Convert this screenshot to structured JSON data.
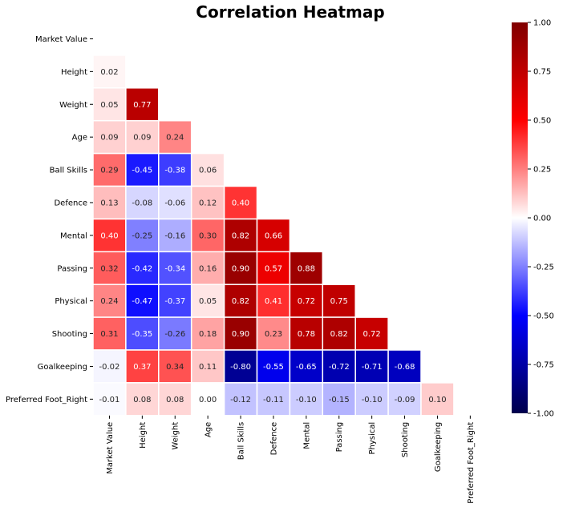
{
  "chart_data": {
    "type": "heatmap",
    "title": "Correlation Heatmap",
    "variables": [
      "Market Value",
      "Height",
      "Weight",
      "Age",
      "Ball Skills",
      "Defence",
      "Mental",
      "Passing",
      "Physical",
      "Shooting",
      "Goalkeeping",
      "Preferred Foot_Right"
    ],
    "mask": "upper-triangle-including-diagonal",
    "matrix": [
      [
        null,
        null,
        null,
        null,
        null,
        null,
        null,
        null,
        null,
        null,
        null,
        null
      ],
      [
        0.02,
        null,
        null,
        null,
        null,
        null,
        null,
        null,
        null,
        null,
        null,
        null
      ],
      [
        0.05,
        0.77,
        null,
        null,
        null,
        null,
        null,
        null,
        null,
        null,
        null,
        null
      ],
      [
        0.09,
        0.09,
        0.24,
        null,
        null,
        null,
        null,
        null,
        null,
        null,
        null,
        null
      ],
      [
        0.29,
        -0.45,
        -0.38,
        0.06,
        null,
        null,
        null,
        null,
        null,
        null,
        null,
        null
      ],
      [
        0.13,
        -0.08,
        -0.06,
        0.12,
        0.4,
        null,
        null,
        null,
        null,
        null,
        null,
        null
      ],
      [
        0.4,
        -0.25,
        -0.16,
        0.3,
        0.82,
        0.66,
        null,
        null,
        null,
        null,
        null,
        null
      ],
      [
        0.32,
        -0.42,
        -0.34,
        0.16,
        0.9,
        0.57,
        0.88,
        null,
        null,
        null,
        null,
        null
      ],
      [
        0.24,
        -0.47,
        -0.37,
        0.05,
        0.82,
        0.41,
        0.72,
        0.75,
        null,
        null,
        null,
        null
      ],
      [
        0.31,
        -0.35,
        -0.26,
        0.18,
        0.9,
        0.23,
        0.78,
        0.82,
        0.72,
        null,
        null,
        null
      ],
      [
        -0.02,
        0.37,
        0.34,
        0.11,
        -0.8,
        -0.55,
        -0.65,
        -0.72,
        -0.71,
        -0.68,
        null,
        null
      ],
      [
        -0.01,
        0.08,
        0.08,
        0.0,
        -0.12,
        -0.11,
        -0.1,
        -0.15,
        -0.1,
        -0.09,
        0.1,
        null
      ]
    ],
    "value_format": "0.00",
    "colormap": "seismic",
    "color_stops": [
      "#00004c",
      "#0000ff",
      "#ffffff",
      "#ff0000",
      "#800000"
    ],
    "vmin": -1.0,
    "vmax": 1.0,
    "colorbar_ticks": [
      "-1.00",
      "-0.75",
      "-0.50",
      "-0.25",
      "0.00",
      "0.25",
      "0.50",
      "0.75",
      "1.00"
    ],
    "colorbar_tick_values": [
      -1.0,
      -0.75,
      -0.5,
      -0.25,
      0.0,
      0.25,
      0.5,
      0.75,
      1.0
    ],
    "grid_line_color": "#ffffff"
  }
}
